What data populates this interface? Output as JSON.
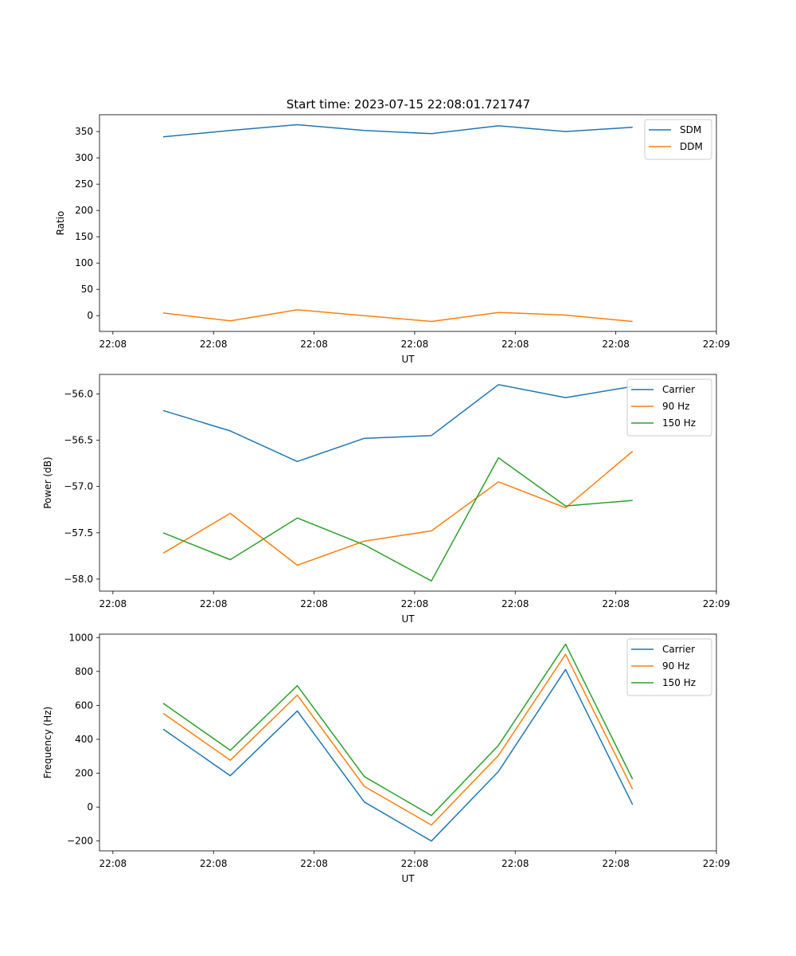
{
  "figure_title": "Start time: 2023-07-15 22:08:01.721747",
  "chart_data": [
    {
      "type": "line",
      "title": "Start time: 2023-07-15 22:08:01.721747",
      "xlabel": "UT",
      "ylabel": "Ratio",
      "xticks": [
        "22:08",
        "22:08",
        "22:08",
        "22:08",
        "22:08",
        "22:08",
        "22:09"
      ],
      "xlim": [
        -0.2,
        9.0
      ],
      "x": [
        0.75,
        1.75,
        2.75,
        3.75,
        4.75,
        5.75,
        6.75,
        7.75
      ],
      "ylim": [
        -30,
        382
      ],
      "yticks": [
        0,
        50,
        100,
        150,
        200,
        250,
        300,
        350
      ],
      "ytick_labels": [
        "0",
        "50",
        "100",
        "150",
        "200",
        "250",
        "300",
        "350"
      ],
      "legend": "top-right",
      "series": [
        {
          "name": "SDM",
          "color": "#1f77b4",
          "values": [
            340,
            352,
            363,
            352,
            346,
            361,
            350,
            358
          ]
        },
        {
          "name": "DDM",
          "color": "#ff7f0e",
          "values": [
            5,
            -10,
            11,
            0,
            -11,
            6,
            1,
            -11
          ]
        }
      ]
    },
    {
      "type": "line",
      "title": "",
      "xlabel": "UT",
      "ylabel": "Power (dB)",
      "xticks": [
        "22:08",
        "22:08",
        "22:08",
        "22:08",
        "22:08",
        "22:08",
        "22:09"
      ],
      "xlim": [
        -0.2,
        9.0
      ],
      "x": [
        0.75,
        1.75,
        2.75,
        3.75,
        4.75,
        5.75,
        6.75,
        7.75
      ],
      "ylim": [
        -58.13,
        -55.79
      ],
      "yticks": [
        -58.0,
        -57.5,
        -57.0,
        -56.5,
        -56.0
      ],
      "ytick_labels": [
        "−58.0",
        "−57.5",
        "−57.0",
        "−56.5",
        "−56.0"
      ],
      "legend": "top-right",
      "series": [
        {
          "name": "Carrier",
          "color": "#1f77b4",
          "values": [
            -56.18,
            -56.4,
            -56.73,
            -56.48,
            -56.45,
            -55.9,
            -56.04,
            -55.92
          ]
        },
        {
          "name": "90 Hz",
          "color": "#ff7f0e",
          "values": [
            -57.72,
            -57.29,
            -57.85,
            -57.59,
            -57.48,
            -56.95,
            -57.23,
            -56.62
          ]
        },
        {
          "name": "150 Hz",
          "color": "#2ca02c",
          "values": [
            -57.5,
            -57.79,
            -57.34,
            -57.63,
            -58.02,
            -56.69,
            -57.21,
            -57.15
          ]
        }
      ]
    },
    {
      "type": "line",
      "title": "",
      "xlabel": "UT",
      "ylabel": "Frequency (Hz)",
      "xticks": [
        "22:08",
        "22:08",
        "22:08",
        "22:08",
        "22:08",
        "22:08",
        "22:09"
      ],
      "xlim": [
        -0.2,
        9.0
      ],
      "x": [
        0.75,
        1.75,
        2.75,
        3.75,
        4.75,
        5.75,
        6.75,
        7.75
      ],
      "ylim": [
        -258,
        1020
      ],
      "yticks": [
        -200,
        0,
        200,
        400,
        600,
        800,
        1000
      ],
      "ytick_labels": [
        "−200",
        "0",
        "200",
        "400",
        "600",
        "800",
        "1000"
      ],
      "legend": "top-right",
      "series": [
        {
          "name": "Carrier",
          "color": "#1f77b4",
          "values": [
            460,
            185,
            567,
            30,
            -200,
            210,
            812,
            15
          ]
        },
        {
          "name": "90 Hz",
          "color": "#ff7f0e",
          "values": [
            553,
            276,
            660,
            122,
            -106,
            305,
            901,
            105
          ]
        },
        {
          "name": "150 Hz",
          "color": "#2ca02c",
          "values": [
            612,
            335,
            716,
            180,
            -50,
            364,
            961,
            165
          ]
        }
      ]
    }
  ]
}
